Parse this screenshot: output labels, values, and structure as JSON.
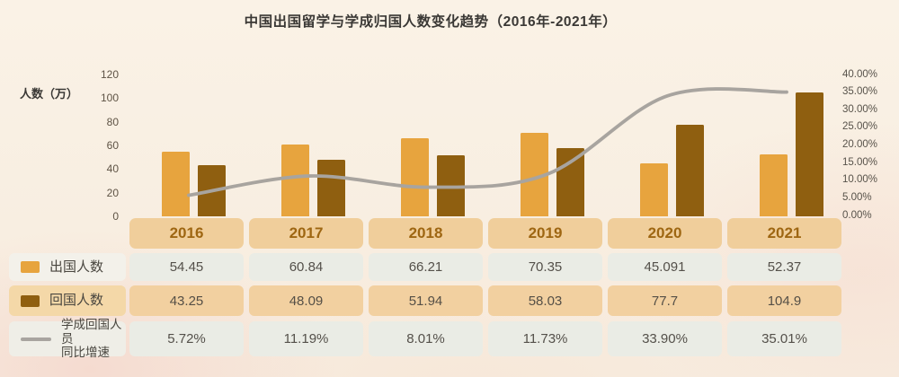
{
  "title": "中国出国留学与学成归国人数变化趋势（2016年-2021年）",
  "chart_data": {
    "type": "bar+line",
    "title": "中国出国留学与学成归国人数变化趋势（2016年-2021年）",
    "categories": [
      "2016",
      "2017",
      "2018",
      "2019",
      "2020",
      "2021"
    ],
    "series": [
      {
        "key": "abroad",
        "name": "出国人数",
        "chart": "bar",
        "color": "#E7A43E",
        "values": [
          54.45,
          60.84,
          66.21,
          70.35,
          45.091,
          52.37
        ],
        "display": [
          "54.45",
          "60.84",
          "66.21",
          "70.35",
          "45.091",
          "52.37"
        ]
      },
      {
        "key": "returned",
        "name": "回国人数",
        "chart": "bar",
        "color": "#8F5F10",
        "values": [
          43.25,
          48.09,
          51.94,
          58.03,
          77.7,
          104.9
        ],
        "display": [
          "43.25",
          "48.09",
          "51.94",
          "58.03",
          "77.7",
          "104.9"
        ]
      },
      {
        "key": "growth",
        "name": "学成回国人员同比增速",
        "legend_label": "学成回国人员\n同比增速",
        "chart": "line",
        "color": "#A8A49F",
        "values": [
          5.72,
          11.19,
          8.01,
          11.73,
          33.9,
          35.01
        ],
        "display": [
          "5.72%",
          "11.19%",
          "8.01%",
          "11.73%",
          "33.90%",
          "35.01%"
        ]
      }
    ],
    "left_axis": {
      "label": "人数（万）",
      "ticks": [
        120,
        100,
        80,
        60,
        40,
        20,
        0
      ],
      "min": 0,
      "max": 120
    },
    "right_axis": {
      "ticks": [
        "40.00%",
        "35.00%",
        "30.00%",
        "25.00%",
        "20.00%",
        "15.00%",
        "10.00%",
        "5.00%",
        "0.00%"
      ],
      "min": 0,
      "max": 40
    },
    "grid": false,
    "legend_position": "table-left"
  }
}
